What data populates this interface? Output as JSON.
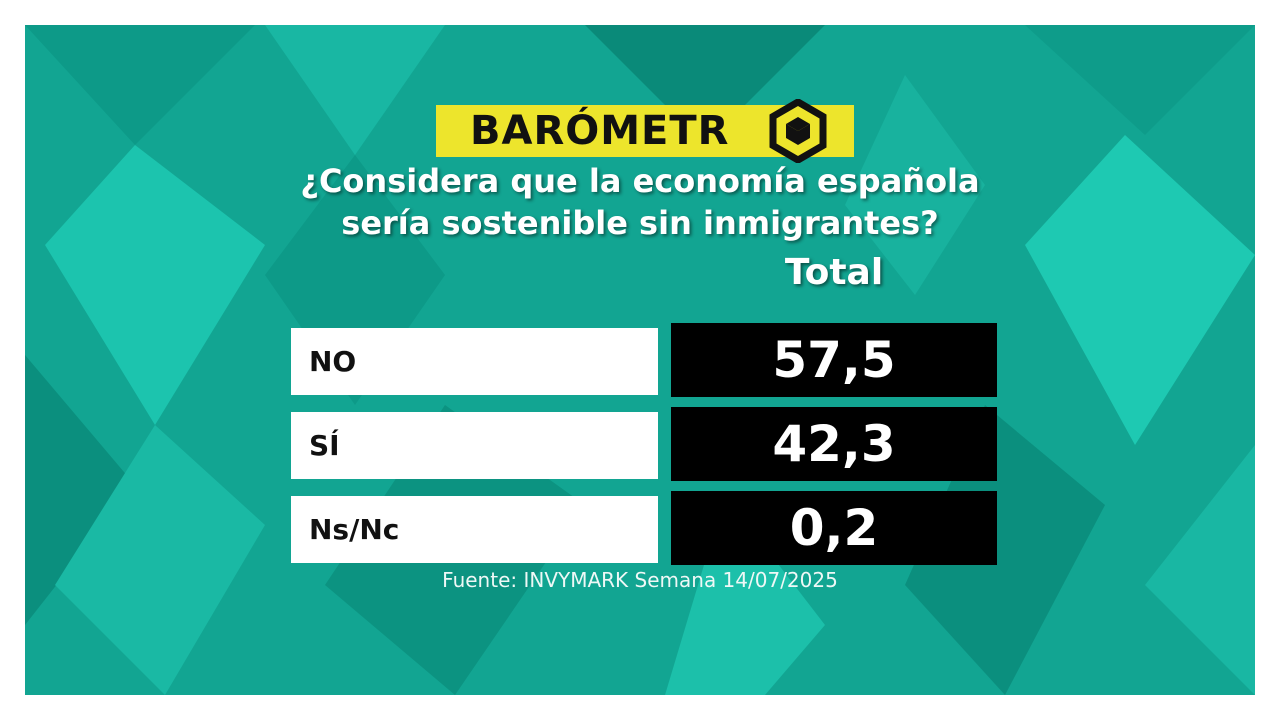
{
  "logo": {
    "text": "BARÓMETR"
  },
  "question": {
    "line1": "¿Considera que la economía española",
    "line2": "sería sostenible sin inmigrantes?"
  },
  "chart_data": {
    "type": "table",
    "column_header": "Total",
    "rows": [
      {
        "label": "NO",
        "value": "57,5"
      },
      {
        "label": "SÍ",
        "value": "42,3"
      },
      {
        "label": "Ns/Nc",
        "value": "0,2"
      }
    ]
  },
  "source": "Fuente: INVYMARK Semana 14/07/2025",
  "colors": {
    "background_teal": "#12a592",
    "logo_yellow": "#ede52c",
    "value_black": "#000000",
    "label_white": "#ffffff"
  }
}
